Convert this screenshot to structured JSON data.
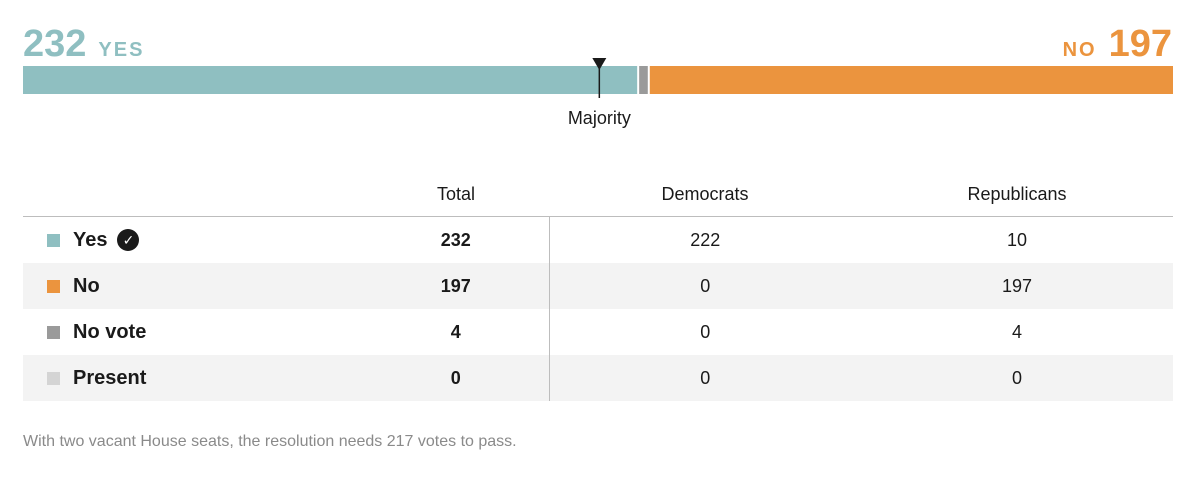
{
  "header": {
    "yes_count": "232",
    "yes_label": "YES",
    "no_label": "NO",
    "no_count": "197"
  },
  "chart_data": {
    "type": "bar",
    "stacked": true,
    "orientation": "horizontal",
    "categories": [
      "Yes",
      "No vote",
      "No"
    ],
    "values": [
      232,
      4,
      197
    ],
    "total_seats": 433,
    "majority": 217,
    "marker_label": "Majority",
    "colors": {
      "yes": "#8fbfc1",
      "no_vote": "#9a9a9a",
      "no": "#eb943e",
      "present": "#d4d4d4"
    }
  },
  "table": {
    "columns": [
      "",
      "Total",
      "Democrats",
      "Republicans"
    ],
    "rows": [
      {
        "label": "Yes",
        "color": "#8fbfc1",
        "check": true,
        "total": "232",
        "dem": "222",
        "rep": "10"
      },
      {
        "label": "No",
        "color": "#eb943e",
        "check": false,
        "total": "197",
        "dem": "0",
        "rep": "197"
      },
      {
        "label": "No vote",
        "color": "#9a9a9a",
        "check": false,
        "total": "4",
        "dem": "0",
        "rep": "4"
      },
      {
        "label": "Present",
        "color": "#d4d4d4",
        "check": false,
        "total": "0",
        "dem": "0",
        "rep": "0"
      }
    ],
    "check_icon": "check-circle-icon"
  },
  "footnote": "With two vacant House seats, the resolution needs 217 votes to pass."
}
